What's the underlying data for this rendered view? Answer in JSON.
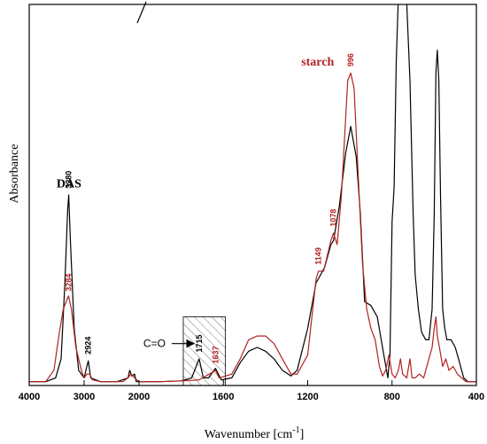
{
  "chart_data": {
    "type": "line",
    "xlabel": "Wavenumber [cm",
    "xlabel_sup": "-1",
    "xlabel_close": "]",
    "ylabel": "Absorbance",
    "x_reversed": true,
    "x_axis_break": "between 2000 and 1600 (scale changes)",
    "x_ticks": [
      4000,
      3000,
      2000,
      1600,
      1200,
      800,
      400
    ],
    "xlim": [
      4000,
      400
    ],
    "ylim": [
      0,
      1
    ],
    "grid": false,
    "colors": {
      "DAS": "#000000",
      "starch": "#b22222"
    },
    "series": [
      {
        "name": "DAS",
        "points": [
          [
            4000,
            0.01
          ],
          [
            3700,
            0.01
          ],
          [
            3520,
            0.02
          ],
          [
            3420,
            0.07
          ],
          [
            3350,
            0.27
          ],
          [
            3300,
            0.46
          ],
          [
            3280,
            0.5
          ],
          [
            3250,
            0.38
          ],
          [
            3180,
            0.15
          ],
          [
            3100,
            0.04
          ],
          [
            3000,
            0.02
          ],
          [
            2950,
            0.05
          ],
          [
            2924,
            0.065
          ],
          [
            2880,
            0.02
          ],
          [
            2700,
            0.01
          ],
          [
            2400,
            0.01
          ],
          [
            2300,
            0.015
          ],
          [
            2200,
            0.02
          ],
          [
            2170,
            0.04
          ],
          [
            2130,
            0.025
          ],
          [
            2080,
            0.03
          ],
          [
            2050,
            0.01
          ],
          [
            2000,
            0.01
          ],
          [
            1900,
            0.01
          ],
          [
            1800,
            0.012
          ],
          [
            1750,
            0.02
          ],
          [
            1715,
            0.07
          ],
          [
            1695,
            0.02
          ],
          [
            1670,
            0.02
          ],
          [
            1637,
            0.045
          ],
          [
            1610,
            0.015
          ],
          [
            1560,
            0.02
          ],
          [
            1520,
            0.06
          ],
          [
            1480,
            0.09
          ],
          [
            1440,
            0.1
          ],
          [
            1400,
            0.09
          ],
          [
            1360,
            0.07
          ],
          [
            1320,
            0.04
          ],
          [
            1280,
            0.025
          ],
          [
            1250,
            0.04
          ],
          [
            1200,
            0.15
          ],
          [
            1160,
            0.27
          ],
          [
            1149,
            0.28
          ],
          [
            1120,
            0.31
          ],
          [
            1090,
            0.37
          ],
          [
            1078,
            0.38
          ],
          [
            1050,
            0.47
          ],
          [
            1020,
            0.61
          ],
          [
            996,
            0.68
          ],
          [
            970,
            0.6
          ],
          [
            950,
            0.45
          ],
          [
            930,
            0.22
          ],
          [
            900,
            0.21
          ],
          [
            870,
            0.18
          ],
          [
            845,
            0.1
          ],
          [
            820,
            0.02
          ],
          [
            810,
            0.08
          ],
          [
            800,
            0.43
          ],
          [
            790,
            0.52
          ],
          [
            780,
            0.85
          ],
          [
            770,
            1.02
          ],
          [
            760,
            1.1
          ],
          [
            745,
            1.1
          ],
          [
            730,
            1.0
          ],
          [
            715,
            0.8
          ],
          [
            700,
            0.45
          ],
          [
            690,
            0.29
          ],
          [
            675,
            0.2
          ],
          [
            660,
            0.14
          ],
          [
            640,
            0.12
          ],
          [
            625,
            0.12
          ],
          [
            610,
            0.2
          ],
          [
            600,
            0.45
          ],
          [
            592,
            0.82
          ],
          [
            585,
            0.88
          ],
          [
            578,
            0.8
          ],
          [
            570,
            0.5
          ],
          [
            560,
            0.2
          ],
          [
            550,
            0.15
          ],
          [
            540,
            0.12
          ],
          [
            520,
            0.12
          ],
          [
            500,
            0.1
          ],
          [
            480,
            0.06
          ],
          [
            460,
            0.02
          ],
          [
            440,
            0.01
          ],
          [
            400,
            0.01
          ]
        ]
      },
      {
        "name": "starch",
        "points": [
          [
            4000,
            0.01
          ],
          [
            3700,
            0.01
          ],
          [
            3550,
            0.04
          ],
          [
            3450,
            0.14
          ],
          [
            3380,
            0.2
          ],
          [
            3300,
            0.23
          ],
          [
            3284,
            0.235
          ],
          [
            3230,
            0.2
          ],
          [
            3150,
            0.1
          ],
          [
            3050,
            0.04
          ],
          [
            3000,
            0.02
          ],
          [
            2950,
            0.03
          ],
          [
            2900,
            0.03
          ],
          [
            2850,
            0.015
          ],
          [
            2700,
            0.01
          ],
          [
            2300,
            0.01
          ],
          [
            2200,
            0.02
          ],
          [
            2150,
            0.03
          ],
          [
            2080,
            0.02
          ],
          [
            2000,
            0.01
          ],
          [
            1900,
            0.01
          ],
          [
            1800,
            0.012
          ],
          [
            1715,
            0.015
          ],
          [
            1650,
            0.035
          ],
          [
            1637,
            0.04
          ],
          [
            1620,
            0.02
          ],
          [
            1560,
            0.03
          ],
          [
            1520,
            0.07
          ],
          [
            1480,
            0.12
          ],
          [
            1440,
            0.13
          ],
          [
            1400,
            0.13
          ],
          [
            1360,
            0.11
          ],
          [
            1320,
            0.07
          ],
          [
            1280,
            0.03
          ],
          [
            1250,
            0.03
          ],
          [
            1200,
            0.08
          ],
          [
            1160,
            0.28
          ],
          [
            1149,
            0.3
          ],
          [
            1125,
            0.3
          ],
          [
            1090,
            0.38
          ],
          [
            1078,
            0.4
          ],
          [
            1060,
            0.37
          ],
          [
            1040,
            0.5
          ],
          [
            1010,
            0.8
          ],
          [
            996,
            0.82
          ],
          [
            980,
            0.78
          ],
          [
            960,
            0.55
          ],
          [
            940,
            0.32
          ],
          [
            920,
            0.2
          ],
          [
            900,
            0.15
          ],
          [
            880,
            0.12
          ],
          [
            860,
            0.05
          ],
          [
            845,
            0.025
          ],
          [
            830,
            0.04
          ],
          [
            815,
            0.08
          ],
          [
            800,
            0.03
          ],
          [
            785,
            0.02
          ],
          [
            770,
            0.04
          ],
          [
            760,
            0.07
          ],
          [
            750,
            0.03
          ],
          [
            730,
            0.02
          ],
          [
            715,
            0.07
          ],
          [
            705,
            0.02
          ],
          [
            690,
            0.02
          ],
          [
            670,
            0.03
          ],
          [
            650,
            0.02
          ],
          [
            630,
            0.06
          ],
          [
            610,
            0.1
          ],
          [
            600,
            0.15
          ],
          [
            592,
            0.18
          ],
          [
            585,
            0.13
          ],
          [
            575,
            0.1
          ],
          [
            560,
            0.05
          ],
          [
            545,
            0.07
          ],
          [
            530,
            0.04
          ],
          [
            510,
            0.05
          ],
          [
            490,
            0.03
          ],
          [
            470,
            0.02
          ],
          [
            450,
            0.01
          ],
          [
            400,
            0.01
          ]
        ]
      }
    ],
    "series_labels": [
      {
        "text": "DAS",
        "series": "DAS",
        "x": 3050,
        "y": 0.52
      },
      {
        "text": "starch",
        "series": "starch",
        "x": 1075,
        "y": 0.84
      }
    ],
    "peak_labels": [
      {
        "text": "3280",
        "series": "DAS",
        "x": 3280,
        "y": 0.51
      },
      {
        "text": "3284",
        "series": "starch",
        "x": 3284,
        "y": 0.24
      },
      {
        "text": "2924",
        "series": "DAS",
        "x": 2924,
        "y": 0.075
      },
      {
        "text": "1715",
        "series": "DAS",
        "x": 1715,
        "y": 0.08
      },
      {
        "text": "1637",
        "series": "starch",
        "x": 1637,
        "y": 0.05
      },
      {
        "text": "1149",
        "series": "starch",
        "x": 1149,
        "y": 0.31
      },
      {
        "text": "1078",
        "series": "starch",
        "x": 1078,
        "y": 0.41
      },
      {
        "text": "996",
        "series": "starch",
        "x": 996,
        "y": 0.83
      }
    ],
    "annotation": {
      "text": "C=O",
      "arrow_to": [
        1740,
        0.11
      ],
      "hatched_region": {
        "x_from": 1790,
        "x_to": 1590,
        "y_from": 0,
        "y_to": 0.18
      }
    }
  }
}
